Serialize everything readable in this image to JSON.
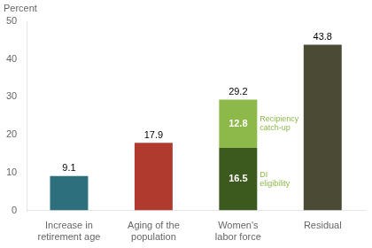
{
  "chart_data": {
    "type": "bar",
    "stacked": true,
    "ylabel": "Percent",
    "categories": [
      "Increase in\nretirement age",
      "Aging of the\npopulation",
      "Women's\nlabor force",
      "Residual"
    ],
    "series": [
      {
        "colors": [
          "#2e6f7e",
          "#b03a2e",
          "#3d5a1e",
          "#4a4a35"
        ],
        "values": [
          9.1,
          17.9,
          16.5,
          43.8
        ],
        "label_colors": [
          "black",
          "black",
          "white",
          "black"
        ],
        "note": {
          "category": "Women's\nlabor force",
          "text": "DI\neligibility",
          "color": "#8db84a"
        }
      },
      {
        "color": "#8db84a",
        "values": [
          null,
          null,
          12.8,
          null
        ],
        "label_colors": [
          null,
          null,
          "white",
          null
        ],
        "note": {
          "category": "Women's\nlabor force",
          "text": "Recipiency\ncatch-up",
          "color": "#8db84a"
        }
      }
    ],
    "annotations": [
      {
        "category": "Women's\nlabor force",
        "text": "29.2"
      }
    ],
    "data_labels": true,
    "ylim": [
      0,
      50
    ],
    "yticks": [
      0,
      10,
      20,
      30,
      40,
      50
    ],
    "grid": false
  }
}
